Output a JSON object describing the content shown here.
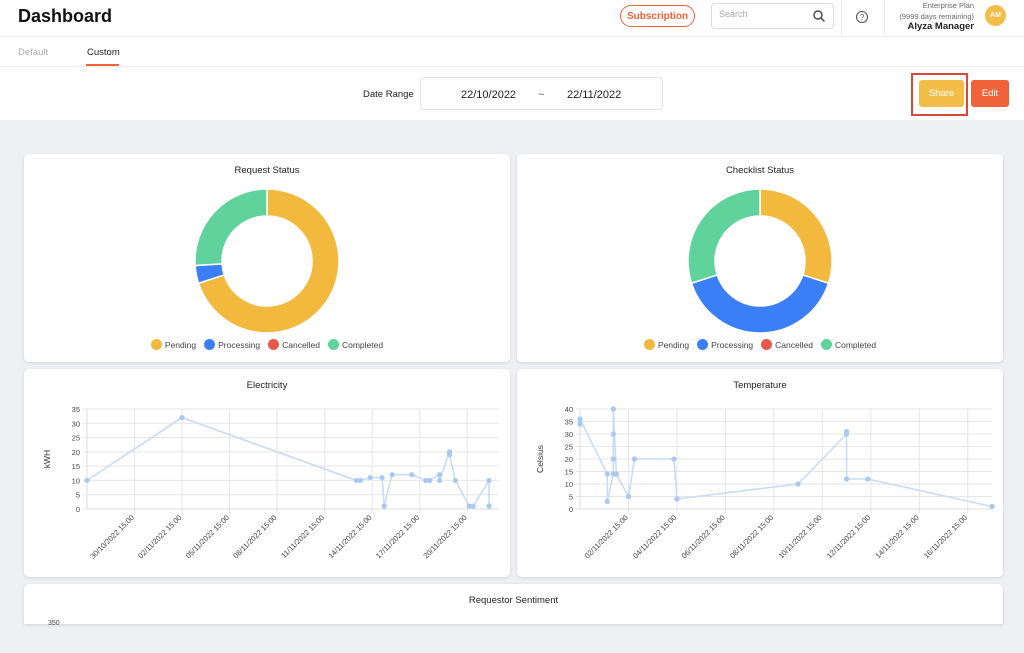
{
  "header": {
    "title": "Dashboard",
    "subscription_label": "Subscription",
    "search_placeholder": "Search",
    "plan_name": "Enterprise Plan",
    "plan_remaining": "(9999 days remaining)",
    "user_name": "Alyza Manager",
    "avatar_initials": "AM"
  },
  "tabs": [
    {
      "label": "Default",
      "active": false
    },
    {
      "label": "Custom",
      "active": true
    }
  ],
  "toolbar": {
    "date_range_label": "Date Range",
    "date_from": "22/10/2022",
    "date_separator": "~",
    "date_to": "22/11/2022",
    "share_label": "Share",
    "edit_label": "Edit"
  },
  "colors": {
    "accent": "#f0623a",
    "pending": "#f3b93e",
    "processing": "#3a7ff6",
    "cancelled": "#e8574a",
    "completed": "#5fd39b",
    "line": "#c8dcf5",
    "point": "#a9c8f2"
  },
  "legend": [
    "Pending",
    "Processing",
    "Cancelled",
    "Completed"
  ],
  "chart_data": [
    {
      "type": "pie",
      "title": "Request Status",
      "categories": [
        "Pending",
        "Processing",
        "Cancelled",
        "Completed"
      ],
      "values": [
        70,
        4,
        0,
        26
      ],
      "legend_position": "bottom"
    },
    {
      "type": "pie",
      "title": "Checklist Status",
      "categories": [
        "Pending",
        "Processing",
        "Cancelled",
        "Completed"
      ],
      "values": [
        30,
        40,
        0,
        30
      ],
      "legend_position": "bottom"
    },
    {
      "type": "line",
      "title": "Electricity",
      "ylabel": "kWH",
      "ylim": [
        0,
        35
      ],
      "yticks": [
        "35",
        "30",
        "25",
        "20",
        "15",
        "10",
        "5",
        "0"
      ],
      "xticks": [
        "30/10/2022 15:00",
        "02/11/2022 15:00",
        "05/11/2022 15:00",
        "08/11/2022 15:00",
        "11/11/2022 15:00",
        "14/11/2022 15:00",
        "17/11/2022 15:00",
        "20/11/2022 15:00"
      ],
      "xlim": [
        "27/10/2022 15:00",
        "22/11/2022 15:00"
      ],
      "points": [
        {
          "x": "27/10/2022 15:00",
          "y": 10
        },
        {
          "x": "02/11/2022 15:00",
          "y": 32
        },
        {
          "x": "13/11/2022 15:00",
          "y": 10
        },
        {
          "x": "13/11/2022 21:00",
          "y": 10
        },
        {
          "x": "14/11/2022 12:00",
          "y": 11
        },
        {
          "x": "15/11/2022 06:00",
          "y": 11
        },
        {
          "x": "15/11/2022 09:00",
          "y": 1
        },
        {
          "x": "15/11/2022 21:00",
          "y": 12
        },
        {
          "x": "17/11/2022 03:00",
          "y": 12
        },
        {
          "x": "18/11/2022 00:00",
          "y": 10
        },
        {
          "x": "18/11/2022 06:00",
          "y": 10
        },
        {
          "x": "18/11/2022 21:00",
          "y": 12
        },
        {
          "x": "18/11/2022 21:00",
          "y": 10
        },
        {
          "x": "19/11/2022 12:00",
          "y": 20
        },
        {
          "x": "19/11/2022 12:00",
          "y": 19
        },
        {
          "x": "19/11/2022 21:00",
          "y": 10
        },
        {
          "x": "20/11/2022 18:00",
          "y": 1
        },
        {
          "x": "21/11/2022 00:00",
          "y": 1
        },
        {
          "x": "22/11/2022 00:00",
          "y": 10
        },
        {
          "x": "22/11/2022 00:00",
          "y": 1
        }
      ]
    },
    {
      "type": "line",
      "title": "Temperature",
      "ylabel": "Celsius",
      "ylim": [
        0,
        40
      ],
      "yticks": [
        "40",
        "35",
        "30",
        "25",
        "20",
        "15",
        "10",
        "5",
        "0"
      ],
      "xticks": [
        "02/11/2022 15:00",
        "04/11/2022 15:00",
        "06/11/2022 15:00",
        "08/11/2022 15:00",
        "10/11/2022 15:00",
        "12/11/2022 15:00",
        "14/11/2022 15:00",
        "16/11/2022 15:00"
      ],
      "xlim": [
        "31/10/2022 15:00",
        "17/11/2022 15:00"
      ],
      "points": [
        {
          "x": "31/10/2022 15:00",
          "y": 34
        },
        {
          "x": "31/10/2022 15:00",
          "y": 36
        },
        {
          "x": "01/11/2022 18:00",
          "y": 14
        },
        {
          "x": "01/11/2022 18:00",
          "y": 3
        },
        {
          "x": "02/11/2022 00:00",
          "y": 14
        },
        {
          "x": "02/11/2022 00:00",
          "y": 20
        },
        {
          "x": "02/11/2022 00:00",
          "y": 30
        },
        {
          "x": "02/11/2022 00:00",
          "y": 40
        },
        {
          "x": "02/11/2022 03:00",
          "y": 14
        },
        {
          "x": "02/11/2022 15:00",
          "y": 5
        },
        {
          "x": "02/11/2022 21:00",
          "y": 20
        },
        {
          "x": "04/11/2022 12:00",
          "y": 20
        },
        {
          "x": "04/11/2022 15:00",
          "y": 4
        },
        {
          "x": "09/11/2022 15:00",
          "y": 10
        },
        {
          "x": "11/11/2022 15:00",
          "y": 30
        },
        {
          "x": "11/11/2022 15:00",
          "y": 31
        },
        {
          "x": "11/11/2022 15:00",
          "y": 12
        },
        {
          "x": "12/11/2022 12:00",
          "y": 12
        },
        {
          "x": "17/11/2022 15:00",
          "y": 1
        }
      ]
    }
  ],
  "sentiment": {
    "title": "Requestor Sentiment",
    "first_tick": "350"
  }
}
